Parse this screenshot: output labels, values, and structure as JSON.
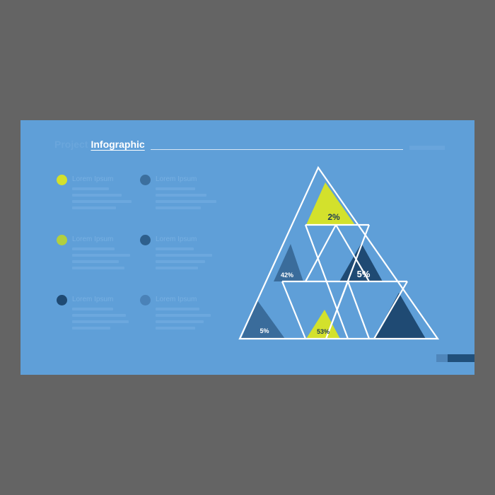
{
  "title": {
    "prefix": "Project",
    "main": "Infographic"
  },
  "legend": [
    {
      "label": "Lorem Ipsum",
      "color": "#d3e12c"
    },
    {
      "label": "Lorem Ipsum",
      "color": "#3c6f9e"
    },
    {
      "label": "Lorem Ipsum",
      "color": "#b1cf3f"
    },
    {
      "label": "Lorem Ipsum",
      "color": "#2e5f8c"
    },
    {
      "label": "Lorem Ipsum",
      "color": "#1f4a73"
    },
    {
      "label": "Lorem Ipsum",
      "color": "#4a82b8"
    }
  ],
  "pyramid": {
    "segments": [
      {
        "id": "top",
        "value": "2%",
        "fill": "#d3e12c",
        "text_color": "#1f3c55"
      },
      {
        "id": "middle-left",
        "value": "42%",
        "fill": "#3a6c9b",
        "text_color": "#ffffff"
      },
      {
        "id": "middle-right",
        "value": "5%",
        "fill": "#1f4a73",
        "text_color": "#ffffff"
      },
      {
        "id": "bottom-left",
        "value": "5%",
        "fill": "#3a6c9b",
        "text_color": "#ffffff"
      },
      {
        "id": "bottom-center",
        "value": "53%",
        "fill": "#d3e12c",
        "text_color": "#1f3c55"
      },
      {
        "id": "bottom-right",
        "value": "",
        "fill": "#1f4a73",
        "text_color": "#ffffff"
      }
    ],
    "line_color": "#ffffff"
  }
}
